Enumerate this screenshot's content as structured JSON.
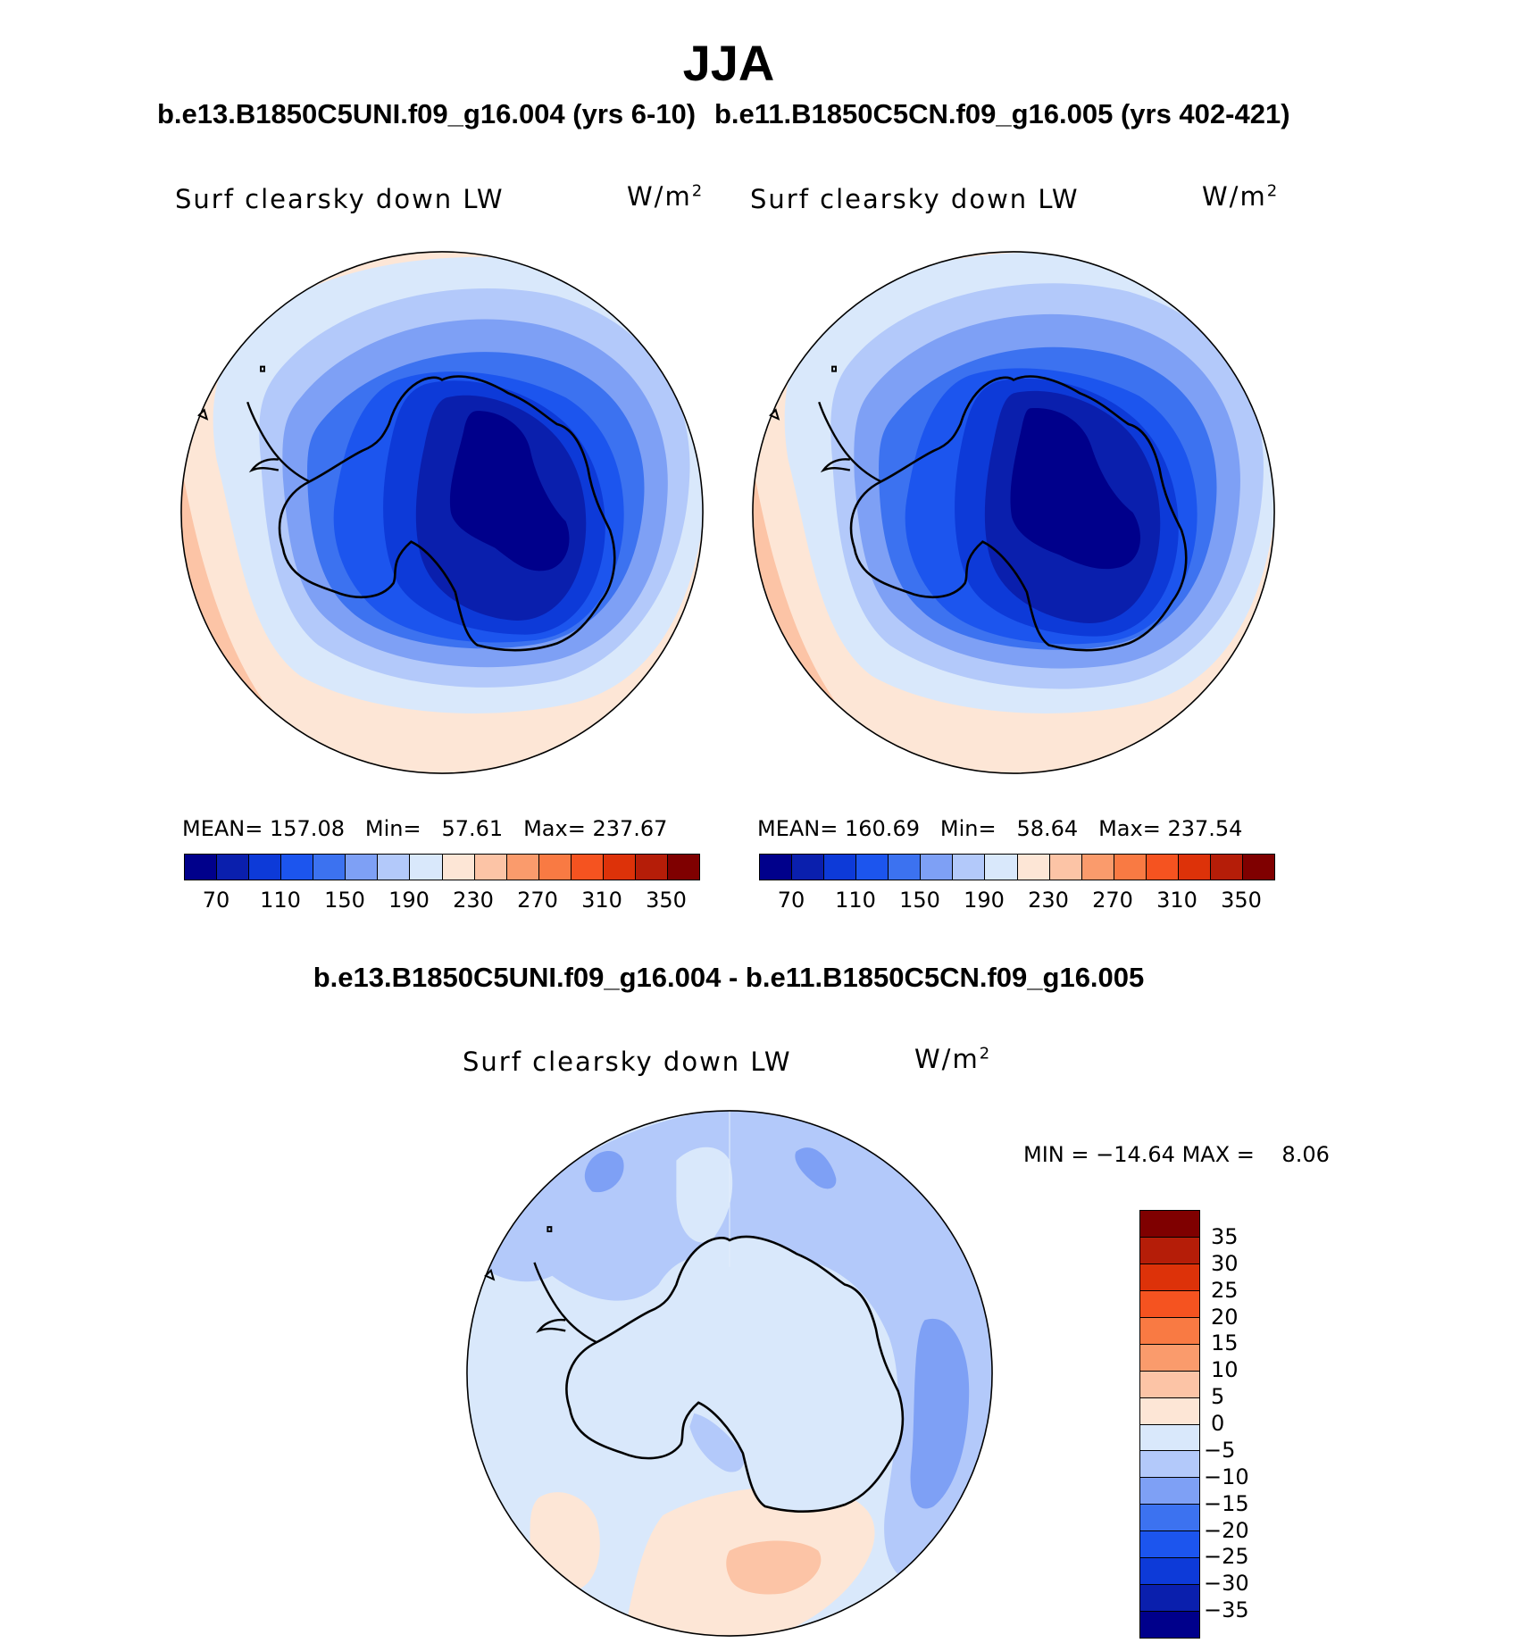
{
  "season_title": "JJA",
  "panels": {
    "left": {
      "case_title": "b.e13.B1850C5UNI.f09_g16.004 (yrs 6-10)",
      "variable": "Surf clearsky down LW",
      "units_base": "W/m",
      "units_exp": "2",
      "stats": {
        "mean_label": "MEAN=",
        "mean": "157.08",
        "min_label": "Min=",
        "min": "57.61",
        "max_label": "Max=",
        "max": "237.67"
      }
    },
    "right": {
      "case_title": "b.e11.B1850C5CN.f09_g16.005 (yrs 402-421)",
      "variable": "Surf clearsky down LW",
      "units_base": "W/m",
      "units_exp": "2",
      "stats": {
        "mean_label": "MEAN=",
        "mean": "160.69",
        "min_label": "Min=",
        "min": "58.64",
        "max_label": "Max=",
        "max": "237.54"
      }
    },
    "diff": {
      "title": "b.e13.B1850C5UNI.f09_g16.004 - b.e11.B1850C5CN.f09_g16.005",
      "variable": "Surf clearsky down LW",
      "units_base": "W/m",
      "units_exp": "2",
      "stats": {
        "min_label": "MIN =",
        "min": "−14.64",
        "max_label": "MAX =",
        "max": "8.06"
      }
    }
  },
  "colorbars": {
    "abs": {
      "colors": [
        "#00008b",
        "#0a1fad",
        "#0d3ad8",
        "#1c55ee",
        "#3c72f0",
        "#7ea0f5",
        "#b3c9fa",
        "#d9e8fb",
        "#fde6d6",
        "#fcc4a6",
        "#fa9b6c",
        "#f97a43",
        "#f55320",
        "#dd3209",
        "#b51d08",
        "#7f0000"
      ],
      "tick_labels": [
        "70",
        "110",
        "150",
        "190",
        "230",
        "270",
        "310",
        "350"
      ]
    },
    "diff": {
      "colors_top_to_bottom": [
        "#7f0000",
        "#b51d08",
        "#dd3209",
        "#f55320",
        "#f97a43",
        "#fa9b6c",
        "#fcc4a6",
        "#fde6d6",
        "#d9e8fb",
        "#b3c9fa",
        "#7ea0f5",
        "#3c72f0",
        "#1c55ee",
        "#0d3ad8",
        "#0a1fad",
        "#00008b"
      ],
      "tick_labels": [
        "35",
        "30",
        "25",
        "20",
        "15",
        "10",
        "5",
        "0",
        "−5",
        "−10",
        "−15",
        "−20",
        "−25",
        "−30",
        "−35"
      ]
    }
  },
  "map_colors": {
    "warm_outer": "#fde6d6",
    "warm_mid": "#fcc4a6",
    "level_190": "#d9e8fb",
    "level_170": "#b3c9fa",
    "level_150": "#7ea0f5",
    "level_130": "#3c72f0",
    "level_110": "#1c55ee",
    "level_90": "#0d3ad8",
    "level_70": "#0a1fad",
    "level_min": "#00008b",
    "coast": "#000000"
  }
}
